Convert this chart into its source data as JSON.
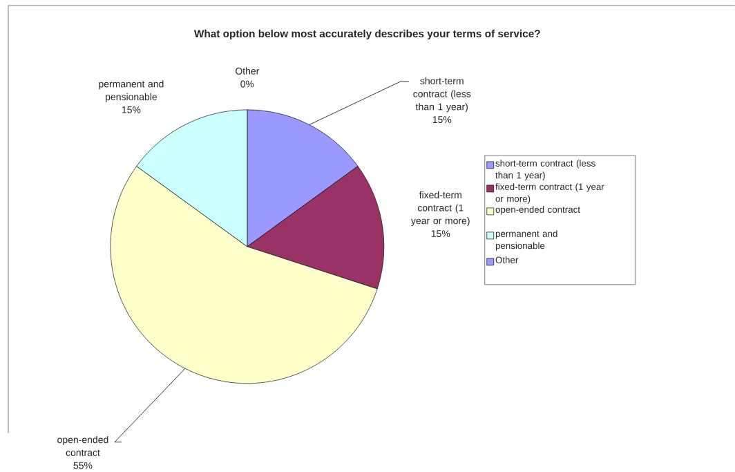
{
  "chart_data": {
    "type": "pie",
    "title": "What option below most accurately describes your terms of service?",
    "categories": [
      "short-term contract (less than 1 year)",
      "fixed-term contract (1 year or more)",
      "open-ended contract",
      "permanent and pensionable",
      "Other"
    ],
    "values": [
      15,
      15,
      55,
      15,
      0
    ],
    "value_labels": [
      "15%",
      "15%",
      "55%",
      "15%",
      "0%"
    ],
    "colors": [
      "#9999ff",
      "#993366",
      "#ffffcc",
      "#ccffff",
      "#9999ff"
    ],
    "legend": "right"
  }
}
